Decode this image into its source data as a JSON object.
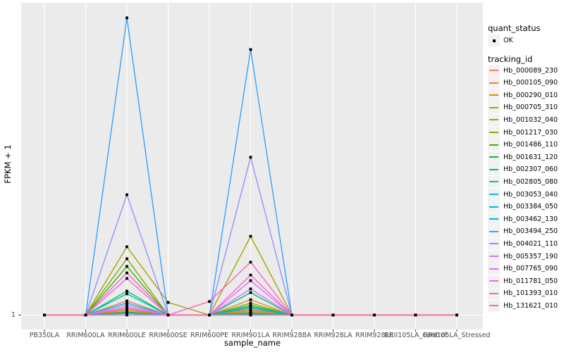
{
  "style": {
    "panel_bg": "#EBEBEB",
    "grid_color": "#FFFFFF",
    "marker_color": "#000000",
    "tick_color": "#333333"
  },
  "axes": {
    "x": {
      "title": "sample_name"
    },
    "y": {
      "title": "FPKM + 1",
      "tick_labels": [
        "1"
      ]
    }
  },
  "legend": {
    "quant_status": {
      "title": "quant_status",
      "items": [
        {
          "label": "OK",
          "symbol": "black-point"
        }
      ]
    },
    "tracking_id": {
      "title": "tracking_id"
    }
  },
  "chart_data": {
    "type": "line",
    "title": "",
    "xlabel": "sample_name",
    "ylabel": "FPKM + 1",
    "grid": "vertical white gridlines per category, horizontal white line at y tick 1",
    "legend_position": "right",
    "y_axis": {
      "labeled_ticks": [
        "1"
      ],
      "note": "Only the tick '1' (baseline) is labeled; series values below are peak heights expressed as fraction of full panel height above the y=1 baseline."
    },
    "categories": [
      "PB350LA",
      "RRIM600LA",
      "RRIM600LE",
      "RRIM600SE",
      "RRIM600PE",
      "RRIM901LA",
      "RRIM928BA",
      "RRIM928LA",
      "RRIM928LE",
      "RRII105LA_Control",
      "RRII105LA_Stressed"
    ],
    "marker": "small black square at every data point (quant_status = OK)",
    "series": [
      {
        "name": "Hb_000089_230",
        "color": "#F8766D",
        "values": [
          0,
          0,
          0.021,
          0,
          0,
          0.018,
          0,
          0,
          0,
          0,
          0
        ]
      },
      {
        "name": "Hb_000105_090",
        "color": "#EA8331",
        "values": [
          0,
          0,
          0.046,
          0,
          0,
          0.05,
          0,
          0,
          0,
          0,
          0
        ]
      },
      {
        "name": "Hb_000290_010",
        "color": "#D89000",
        "values": [
          0,
          0,
          0.016,
          0,
          0,
          0.014,
          0,
          0,
          0,
          0,
          0
        ]
      },
      {
        "name": "Hb_000705_310",
        "color": "#C09B00",
        "values": [
          0,
          0,
          0.011,
          0,
          0,
          0.009,
          0,
          0,
          0,
          0,
          0
        ]
      },
      {
        "name": "Hb_001032_040",
        "color": "#A3A500",
        "values": [
          0,
          0,
          0.222,
          0.041,
          0,
          0.256,
          0,
          0,
          0,
          0,
          0
        ]
      },
      {
        "name": "Hb_001217_030",
        "color": "#7CAE00",
        "values": [
          0,
          0,
          0.183,
          0,
          0,
          0.039,
          0,
          0,
          0,
          0,
          0
        ]
      },
      {
        "name": "Hb_001486_110",
        "color": "#39B600",
        "values": [
          0,
          0,
          0.158,
          0,
          0,
          0.032,
          0,
          0,
          0,
          0,
          0
        ]
      },
      {
        "name": "Hb_001631_120",
        "color": "#00BB4E",
        "values": [
          0,
          0,
          0.009,
          0,
          0,
          0.007,
          0,
          0,
          0,
          0,
          0
        ]
      },
      {
        "name": "Hb_002307_060",
        "color": "#00BF7D",
        "values": [
          0,
          0,
          0.078,
          0,
          0,
          0.073,
          0,
          0,
          0,
          0,
          0
        ]
      },
      {
        "name": "Hb_002805_080",
        "color": "#00C1A3",
        "values": [
          0,
          0,
          0.069,
          0,
          0,
          0.023,
          0,
          0,
          0,
          0,
          0
        ]
      },
      {
        "name": "Hb_003053_040",
        "color": "#00BFC4",
        "values": [
          0,
          0,
          0.007,
          0,
          0,
          0.005,
          0,
          0,
          0,
          0,
          0
        ]
      },
      {
        "name": "Hb_003384_050",
        "color": "#00BAE0",
        "values": [
          0,
          0,
          0.005,
          0,
          0,
          0.002,
          0,
          0,
          0,
          0,
          0
        ]
      },
      {
        "name": "Hb_003462_130",
        "color": "#00B0F6",
        "values": [
          0,
          0,
          0.039,
          0,
          0,
          0.027,
          0,
          0,
          0,
          0,
          0
        ]
      },
      {
        "name": "Hb_003494_250",
        "color": "#35A2FF",
        "values": [
          0,
          0,
          0.966,
          0,
          0,
          0.863,
          0,
          0,
          0,
          0,
          0
        ]
      },
      {
        "name": "Hb_004021_110",
        "color": "#9590FF",
        "values": [
          0,
          0,
          0.391,
          0,
          0,
          0.513,
          0,
          0,
          0,
          0,
          0
        ]
      },
      {
        "name": "Hb_005357_190",
        "color": "#C77CFF",
        "values": [
          0,
          0,
          0.032,
          0,
          0,
          0.085,
          0,
          0,
          0,
          0,
          0
        ]
      },
      {
        "name": "Hb_007765_090",
        "color": "#E76BF3",
        "values": [
          0,
          0,
          0.025,
          0,
          0,
          0.112,
          0,
          0,
          0,
          0,
          0
        ]
      },
      {
        "name": "Hb_011781_050",
        "color": "#FA62DB",
        "values": [
          0,
          0,
          0.119,
          0,
          0,
          0.13,
          0,
          0,
          0,
          0,
          0
        ]
      },
      {
        "name": "Hb_101393_010",
        "color": "#FF62BC",
        "values": [
          0,
          0,
          0.137,
          0,
          0.044,
          0.172,
          0,
          0,
          0,
          0,
          0
        ]
      },
      {
        "name": "Hb_131621_010",
        "color": "#FF6A98",
        "values": [
          0,
          0,
          0,
          0,
          0,
          0,
          0,
          0,
          0,
          0,
          0
        ]
      }
    ]
  }
}
